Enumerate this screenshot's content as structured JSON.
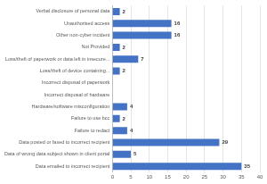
{
  "chart_data": {
    "type": "bar",
    "orientation": "horizontal",
    "categories": [
      "Verbal disclosure of personal data",
      "Unauthorised access",
      "Other non-cyber incident",
      "Not Provided",
      "Loss/theft of paperwork or data left in insecure...",
      "Loss/theft of device containing...",
      "Incorrect disposal of paperwork",
      "Incorrect disposal of hardware",
      "Hardware/software misconfiguration",
      "Failure to use bcc",
      "Failure to redact",
      "Data posted or faxed to incorrect recipient",
      "Data of wrong data subject shown in client portal",
      "Data emailed to incorrect recipient"
    ],
    "values": [
      2,
      16,
      16,
      2,
      7,
      2,
      null,
      null,
      4,
      2,
      4,
      29,
      5,
      35
    ],
    "color": "#4472c4",
    "xlim": [
      0,
      40
    ],
    "xticks": [
      0,
      5,
      10,
      15,
      20,
      25,
      30,
      35,
      40
    ],
    "grid": true,
    "data_labels": true
  }
}
